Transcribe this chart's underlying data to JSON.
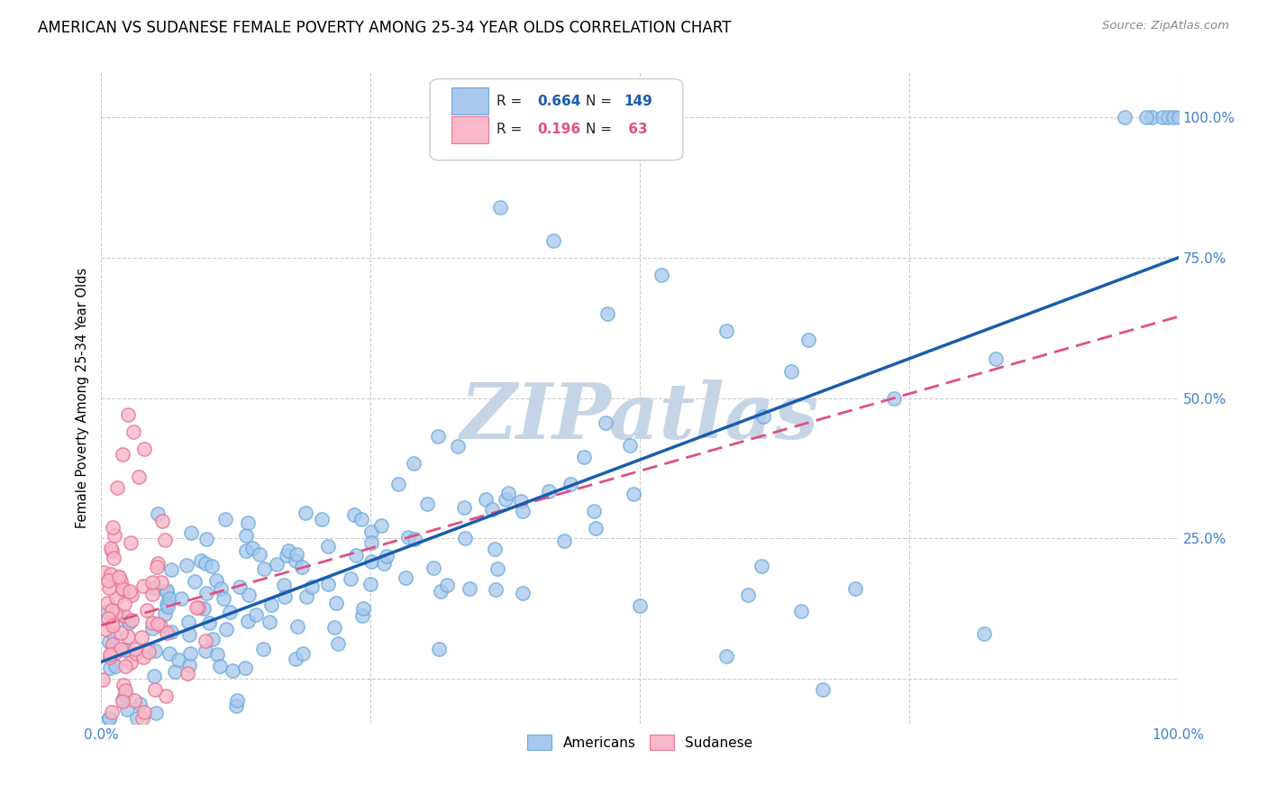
{
  "title": "AMERICAN VS SUDANESE FEMALE POVERTY AMONG 25-34 YEAR OLDS CORRELATION CHART",
  "source": "Source: ZipAtlas.com",
  "ylabel": "Female Poverty Among 25-34 Year Olds",
  "xlim": [
    0,
    1
  ],
  "ylim": [
    -0.08,
    1.08
  ],
  "american_R": 0.664,
  "american_N": 149,
  "sudanese_R": 0.196,
  "sudanese_N": 63,
  "american_color": "#A8C8EC",
  "american_edge_color": "#6AAADE",
  "sudanese_color": "#F8B8C8",
  "sudanese_edge_color": "#E87898",
  "american_line_color": "#1A5CB0",
  "sudanese_line_color": "#E05080",
  "watermark": "ZIPatlas",
  "watermark_color": "#C8D8E8",
  "background_color": "#FFFFFF",
  "grid_color": "#CCCCCC",
  "title_fontsize": 12,
  "tick_color": "#4080D0",
  "legend_box_color": "#FFFFFF",
  "legend_border_color": "#CCCCCC",
  "am_slope": 0.72,
  "am_intercept": 0.03,
  "su_slope": 0.55,
  "su_intercept": 0.095
}
